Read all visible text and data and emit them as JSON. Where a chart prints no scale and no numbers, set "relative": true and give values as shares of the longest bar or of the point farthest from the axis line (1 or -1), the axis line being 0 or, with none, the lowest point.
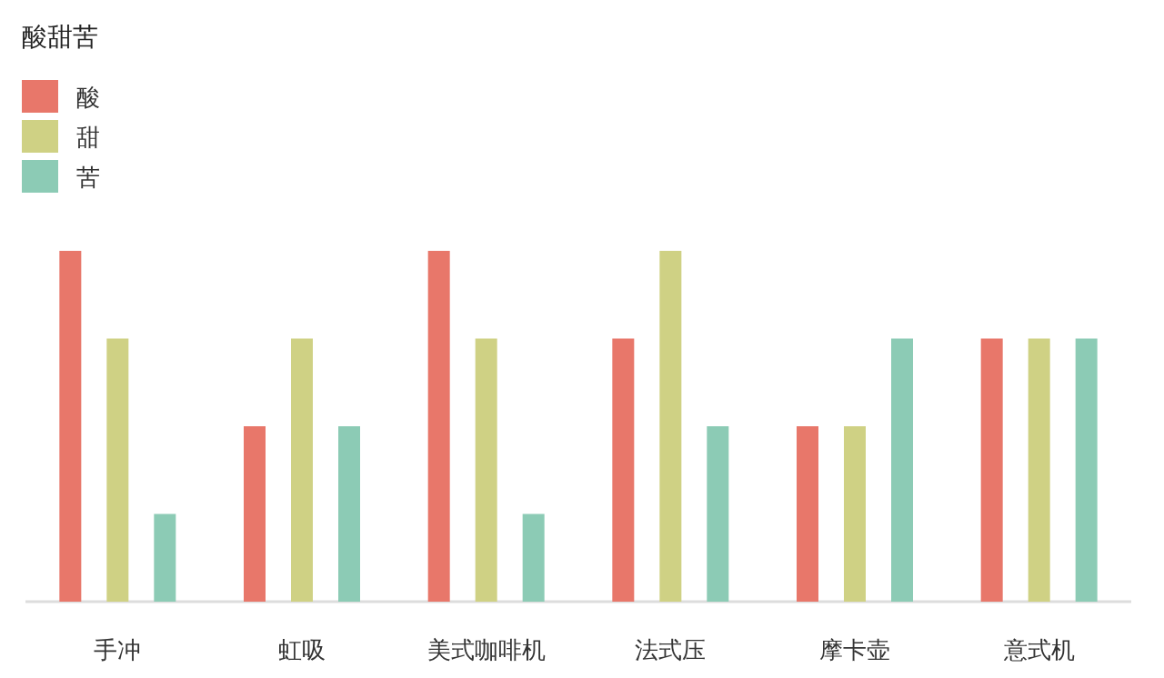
{
  "chart_data": {
    "type": "bar",
    "relative": true,
    "legend": "top left",
    "legend_title": "酸甜苦",
    "categories": [
      "手冲",
      "虹吸",
      "美式咖啡机",
      "法式压",
      "摩卡壶",
      "意式机"
    ],
    "series": [
      {
        "name": "酸",
        "color": "#e8776a",
        "values": [
          1,
          0.5,
          1,
          0.75,
          0.5,
          0.75
        ]
      },
      {
        "name": "甜",
        "color": "#cfd184",
        "values": [
          0.75,
          0.75,
          0.75,
          1,
          0.5,
          0.75
        ]
      },
      {
        "name": "苦",
        "color": "#8ccbb5",
        "values": [
          0.25,
          0.5,
          0.25,
          0.5,
          0.75,
          0.75
        ]
      }
    ]
  }
}
